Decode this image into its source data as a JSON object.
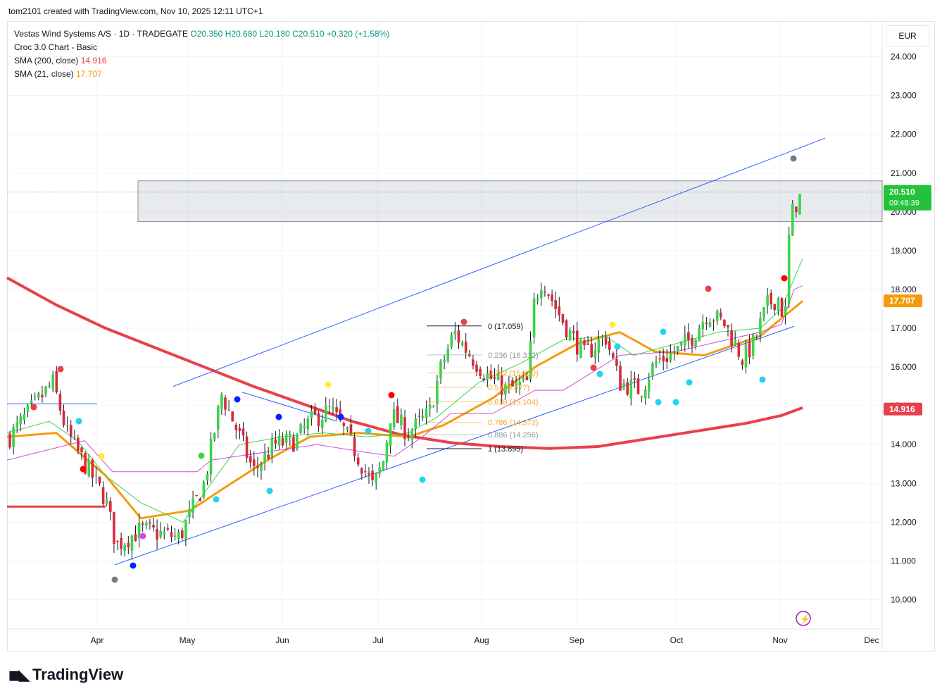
{
  "header": {
    "credit": "tom2101 created with TradingView.com, Nov 10, 2025 12:11 UTC+1"
  },
  "legend": {
    "symbol": "Vestas Wind Systems A/S · 1D · TRADEGATE",
    "open": "O20.350",
    "high": "H20.680",
    "low": "L20.180",
    "close": "C20.510",
    "change": "+0.320 (+1.58%)",
    "indicator1": "Croc 3.0 Chart - Basic",
    "sma200_label": "SMA (200, close)",
    "sma200_value": "14.916",
    "sma21_label": "SMA (21, close)",
    "sma21_value": "17.707"
  },
  "currency": "EUR",
  "branding": "TradingView",
  "colors": {
    "up": "#22ab94",
    "down": "#f23645",
    "sma200": "#e8404b",
    "sma21": "#f59b0b",
    "channel": "#2962ff",
    "price_label": "#22c33a",
    "kijun": "#d24dd6"
  },
  "chart_data": {
    "type": "candlestick",
    "ylim": [
      9.3,
      24.9
    ],
    "y_ticks": [
      "24.000",
      "23.000",
      "22.000",
      "21.000",
      "20.000",
      "19.000",
      "18.000",
      "17.000",
      "16.000",
      "15.000",
      "14.000",
      "13.000",
      "12.000",
      "11.000",
      "10.000"
    ],
    "x_ticks": [
      "Apr",
      "May",
      "Jun",
      "Jul",
      "Aug",
      "Sep",
      "Oct",
      "Nov",
      "Dec"
    ],
    "last_price": {
      "value": "20.510",
      "countdown": "09:48:39"
    },
    "sma21_label": "17.707",
    "sma200_label": "14.916",
    "resistance_zone": [
      19.75,
      20.8
    ],
    "fibonacci": [
      {
        "level": "0",
        "price": "17.059"
      },
      {
        "level": "0.236",
        "price": "16.312"
      },
      {
        "level": "0.382",
        "price": "15.850"
      },
      {
        "level": "0.5",
        "price": "15.477"
      },
      {
        "level": "0.618",
        "price": "15.104"
      },
      {
        "level": "0.786",
        "price": "14.572"
      },
      {
        "level": "0.886",
        "price": "14.256"
      },
      {
        "level": "1",
        "price": "13.895"
      }
    ],
    "series": [
      {
        "name": "SMA (200, close)",
        "values": [
          18.3,
          17.6,
          17.0,
          16.5,
          16.0,
          15.5,
          15.05,
          14.6,
          14.25,
          14.05,
          13.95,
          13.9,
          13.95,
          14.15,
          14.35,
          14.55,
          14.75,
          14.95
        ]
      },
      {
        "name": "SMA (21, close)",
        "values": [
          14.2,
          14.3,
          13.2,
          12.1,
          12.3,
          12.9,
          13.6,
          14.2,
          14.3,
          14.2,
          14.5,
          15.2,
          16.0,
          16.6,
          16.9,
          16.4,
          16.3,
          16.8,
          17.7
        ]
      }
    ]
  }
}
